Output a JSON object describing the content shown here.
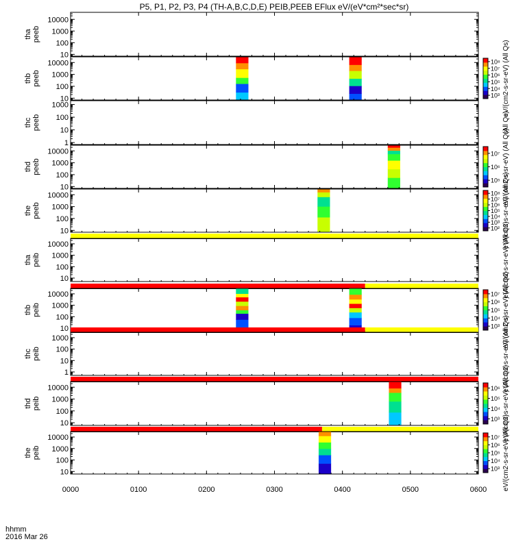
{
  "title": "P5, P1, P2, P3, P4 (TH-A,B,C,D,E) PEIB,PEEB EFlux eV/(eV*cm²*sec*sr)",
  "colors": {
    "yellow_bar": "#ffff00",
    "red_bar": "#ff0000",
    "frame": "#000000",
    "colormap": [
      "#2a0050",
      "#1a00c8",
      "#0050ff",
      "#00c8ff",
      "#00e090",
      "#30ff30",
      "#c8ff00",
      "#ffff00",
      "#ff9000",
      "#ff0000"
    ]
  },
  "chart_data": {
    "type": "heatmap",
    "title": "P5, P1, P2, P3, P4 (TH-A,B,C,D,E) PEIB,PEEB EFlux eV/(eV*cm²*sec*sr)",
    "xaxis": {
      "label_lines": [
        "hhmm",
        "2016 Mar 26"
      ],
      "ticks": [
        0,
        60,
        120,
        180,
        240,
        300,
        360
      ],
      "tick_labels": [
        "0000",
        "0100",
        "0200",
        "0300",
        "0400",
        "0500",
        "0600"
      ],
      "range_minutes": [
        0,
        360
      ]
    },
    "ylog_range": [
      5,
      40000
    ],
    "panels": [
      {
        "id": "tha-peeb",
        "ylabel": [
          "tha",
          "peeb"
        ],
        "y_ticks": [
          10,
          100,
          1000,
          10000
        ],
        "y_tick_labels": [
          "10",
          "100",
          "1000",
          "10000"
        ],
        "ylim": [
          7,
          40000
        ],
        "bursts": [],
        "colorbar": null
      },
      {
        "id": "thb-peeb",
        "ylabel": [
          "thb",
          "peeb"
        ],
        "y_ticks": [
          10,
          100,
          1000,
          10000
        ],
        "y_tick_labels": [
          "10",
          "100",
          "1000",
          "10000"
        ],
        "ylim": [
          7,
          30000
        ],
        "bursts": [
          {
            "start_min": 146,
            "end_min": 157,
            "bands": [
              [
                0,
                3
              ],
              [
                0.18,
                2
              ],
              [
                0.38,
                5
              ],
              [
                0.52,
                7
              ],
              [
                0.72,
                8
              ],
              [
                0.86,
                9
              ],
              [
                0.95,
                9
              ]
            ]
          },
          {
            "start_min": 246,
            "end_min": 257,
            "bands": [
              [
                0,
                2
              ],
              [
                0.15,
                1
              ],
              [
                0.33,
                4
              ],
              [
                0.5,
                6
              ],
              [
                0.68,
                8
              ],
              [
                0.82,
                9
              ],
              [
                0.95,
                9
              ]
            ]
          }
        ],
        "colorbar": {
          "tick_labels": [
            "10³",
            "10⁴",
            "10⁵",
            "10⁶",
            "10⁷",
            "10⁸"
          ],
          "label": "eV/(cm2-s-sr-eV) (All Qs)"
        }
      },
      {
        "id": "thc-peeb",
        "ylabel": [
          "thc",
          "peeb"
        ],
        "y_ticks": [
          1,
          10,
          100,
          1000
        ],
        "y_tick_labels": [
          "1",
          "10",
          "100",
          "1000"
        ],
        "ylim": [
          0.7,
          2000
        ],
        "bursts": [],
        "colorbar": null,
        "label": "(All Qs)"
      },
      {
        "id": "thd-peeb",
        "ylabel": [
          "thd",
          "peeb"
        ],
        "y_ticks": [
          10,
          100,
          1000,
          10000
        ],
        "y_tick_labels": [
          "10",
          "100",
          "1000",
          "10000"
        ],
        "ylim": [
          7,
          30000
        ],
        "bursts": [
          {
            "start_min": 280,
            "end_min": 291,
            "bands": [
              [
                0,
                5
              ],
              [
                0.25,
                6
              ],
              [
                0.45,
                7
              ],
              [
                0.65,
                5
              ],
              [
                0.8,
                4
              ],
              [
                0.88,
                8
              ],
              [
                0.95,
                9
              ]
            ]
          }
        ],
        "colorbar": {
          "tick_labels": [
            "10⁵",
            "10⁶",
            "10⁷"
          ],
          "label": "eV/(cm2-s-sr-eV) (All Qs)"
        }
      },
      {
        "id": "the-peeb",
        "ylabel": [
          "the",
          "peeb"
        ],
        "y_ticks": [
          10,
          100,
          1000,
          10000
        ],
        "y_tick_labels": [
          "10",
          "100",
          "1000",
          "10000"
        ],
        "ylim": [
          7,
          30000
        ],
        "bursts": [
          {
            "start_min": 218,
            "end_min": 229,
            "bands": [
              [
                0,
                6
              ],
              [
                0.35,
                5
              ],
              [
                0.6,
                4
              ],
              [
                0.82,
                6
              ],
              [
                0.93,
                8
              ]
            ]
          }
        ],
        "colorbar": {
          "tick_labels": [
            "10²",
            "10³",
            "10⁴",
            "10⁵",
            "10⁶",
            "10⁷",
            "10⁸"
          ],
          "label": "eV/(cm2-s-sr-eV) (All Qs)"
        }
      },
      {
        "id": "tha-peib",
        "ylabel": [
          "tha",
          "peib"
        ],
        "y_ticks": [
          10,
          100,
          1000,
          10000
        ],
        "y_tick_labels": [
          "10",
          "100",
          "1000",
          "10000"
        ],
        "ylim": [
          5,
          30000
        ],
        "bursts": [],
        "colorbar": null,
        "flag_bar": [
          {
            "color": "yellow",
            "from_min": 0,
            "to_min": 360
          }
        ],
        "label": "eV/(cm2-s-sr-eV) (All Qs)"
      },
      {
        "id": "thb-peib",
        "ylabel": [
          "thb",
          "peib"
        ],
        "y_ticks": [
          10,
          100,
          1000,
          10000
        ],
        "y_tick_labels": [
          "10",
          "100",
          "1000",
          "10000"
        ],
        "ylim": [
          5,
          30000
        ],
        "bursts": [
          {
            "start_min": 146,
            "end_min": 157,
            "bands": [
              [
                0,
                0
              ],
              [
                0.1,
                2
              ],
              [
                0.28,
                1
              ],
              [
                0.42,
                5
              ],
              [
                0.5,
                8
              ],
              [
                0.6,
                6
              ],
              [
                0.7,
                9
              ],
              [
                0.8,
                7
              ],
              [
                0.88,
                4
              ]
            ]
          },
          {
            "start_min": 246,
            "end_min": 257,
            "bands": [
              [
                0,
                1
              ],
              [
                0.15,
                2
              ],
              [
                0.32,
                3
              ],
              [
                0.45,
                6
              ],
              [
                0.55,
                9
              ],
              [
                0.65,
                7
              ],
              [
                0.75,
                8
              ],
              [
                0.86,
                5
              ]
            ]
          }
        ],
        "colorbar": {
          "tick_labels": [
            "10³",
            "10⁴",
            "10⁵",
            "10⁶",
            "10⁷"
          ],
          "label": "eV/(cm2-s-sr-eV) (All Qs)"
        },
        "flag_bar": [
          {
            "color": "red",
            "from_min": 0,
            "to_min": 260
          },
          {
            "color": "yellow",
            "from_min": 260,
            "to_min": 360
          }
        ]
      },
      {
        "id": "thc-peib",
        "ylabel": [
          "thc",
          "peib"
        ],
        "y_ticks": [
          1,
          10,
          100,
          1000
        ],
        "y_tick_labels": [
          "1",
          "10",
          "100",
          "1000"
        ],
        "ylim": [
          0.5,
          3000
        ],
        "bursts": [],
        "colorbar": null,
        "flag_bar": [
          {
            "color": "red",
            "from_min": 0,
            "to_min": 260
          },
          {
            "color": "yellow",
            "from_min": 260,
            "to_min": 360
          }
        ],
        "label": "eV/(cm2-s-sr-eV) (All Qs)"
      },
      {
        "id": "thd-peib",
        "ylabel": [
          "thd",
          "peib"
        ],
        "y_ticks": [
          10,
          100,
          1000,
          10000
        ],
        "y_tick_labels": [
          "10",
          "100",
          "1000",
          "10000"
        ],
        "ylim": [
          6,
          30000
        ],
        "bursts": [
          {
            "start_min": 281,
            "end_min": 292,
            "bands": [
              [
                0,
                3
              ],
              [
                0.3,
                4
              ],
              [
                0.55,
                5
              ],
              [
                0.75,
                8
              ],
              [
                0.85,
                9
              ]
            ]
          }
        ],
        "colorbar": {
          "tick_labels": [
            "10³",
            "10⁴",
            "10⁵",
            "10⁶"
          ],
          "label": "eV/(cm2-s-sr-eV) (All Qs)"
        },
        "flag_bar": [
          {
            "color": "red",
            "from_min": 0,
            "to_min": 360
          }
        ]
      },
      {
        "id": "the-peib",
        "ylabel": [
          "the",
          "peib"
        ],
        "y_ticks": [
          10,
          100,
          1000,
          10000
        ],
        "y_tick_labels": [
          "10",
          "100",
          "1000",
          "10000"
        ],
        "ylim": [
          6,
          30000
        ],
        "bursts": [
          {
            "start_min": 219,
            "end_min": 230,
            "bands": [
              [
                0,
                1
              ],
              [
                0.25,
                2
              ],
              [
                0.45,
                4
              ],
              [
                0.6,
                5
              ],
              [
                0.75,
                7
              ],
              [
                0.9,
                8
              ]
            ]
          }
        ],
        "colorbar": {
          "tick_labels": [
            "10³",
            "10⁴",
            "10⁵",
            "10⁶",
            "10⁷"
          ],
          "label": "eV/(cm2-s-sr-eV) (All Qs)"
        },
        "flag_bar": [
          {
            "color": "red",
            "from_min": 0,
            "to_min": 222
          },
          {
            "color": "yellow",
            "from_min": 222,
            "to_min": 360
          }
        ]
      }
    ]
  }
}
